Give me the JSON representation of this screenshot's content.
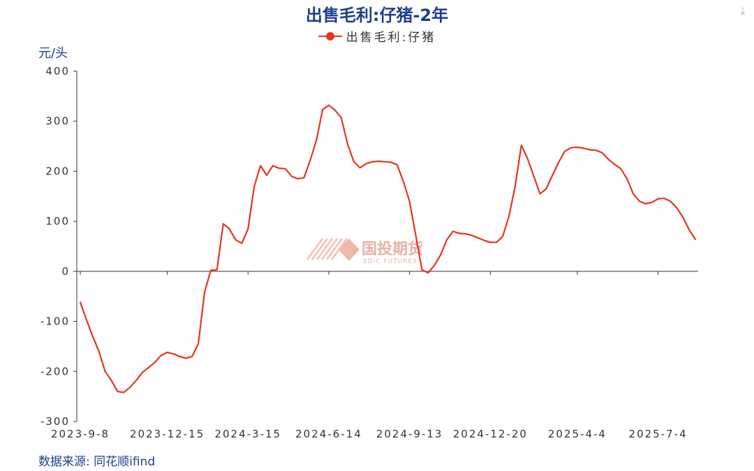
{
  "chart_data": {
    "type": "line",
    "title": "出售毛利:仔猪-2年",
    "ylabel": "元/头",
    "ylim": [
      -300,
      400
    ],
    "yticks": [
      400,
      300,
      200,
      100,
      0,
      -100,
      -200,
      -300
    ],
    "xticks": [
      "2023-9-8",
      "2023-12-15",
      "2024-3-15",
      "2024-6-14",
      "2024-9-13",
      "2024-12-20",
      "2025-4-4",
      "2025-7-4"
    ],
    "xtick_index": [
      0,
      14,
      27,
      40,
      53,
      66,
      80,
      93
    ],
    "grid": false,
    "legend_position": "top-center",
    "series": [
      {
        "name": "出售毛利:仔猪",
        "color": "#e8341c",
        "values": [
          -62,
          -97,
          -130,
          -160,
          -200,
          -218,
          -240,
          -242,
          -232,
          -218,
          -202,
          -192,
          -182,
          -168,
          -162,
          -165,
          -170,
          -174,
          -170,
          -145,
          -42,
          2,
          3,
          95,
          85,
          63,
          56,
          85,
          170,
          211,
          192,
          211,
          206,
          205,
          190,
          185,
          187,
          222,
          262,
          323,
          332,
          322,
          307,
          255,
          220,
          207,
          215,
          219,
          220,
          219,
          218,
          213,
          180,
          140,
          72,
          3,
          -3,
          12,
          33,
          63,
          80,
          76,
          75,
          72,
          67,
          62,
          58,
          58,
          70,
          110,
          170,
          252,
          225,
          190,
          155,
          165,
          192,
          218,
          240,
          247,
          248,
          246,
          243,
          242,
          237,
          224,
          214,
          205,
          185,
          155,
          140,
          135,
          138,
          145,
          146,
          140,
          127,
          108,
          83,
          64
        ]
      }
    ]
  },
  "unit_label": "元/头",
  "source_text": "数据来源: 同花顺ifind",
  "watermark": {
    "text": "国投期货",
    "sub": "SDIC FUTURES"
  },
  "download_icon": "download-icon"
}
